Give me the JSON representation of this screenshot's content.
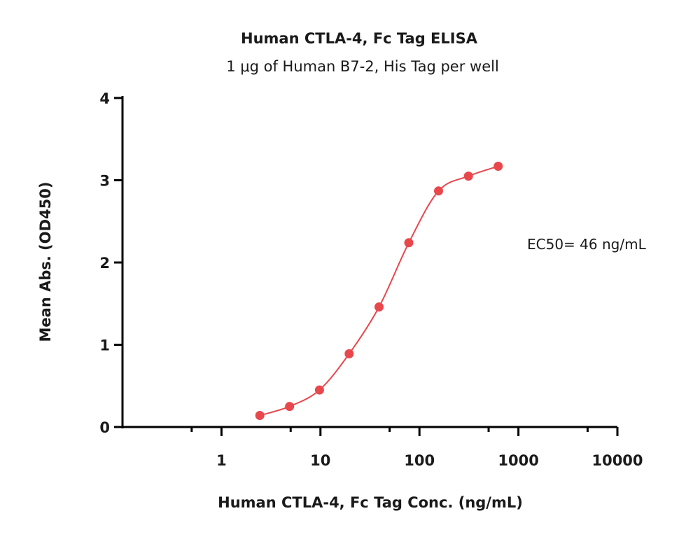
{
  "chart_data": {
    "type": "scatter",
    "title": "Human CTLA-4, Fc Tag ELISA",
    "subtitle": "1 μg of Human B7-2, His Tag per well",
    "xlabel": "Human CTLA-4, Fc Tag Conc. (ng/mL)",
    "ylabel": "Mean Abs. (OD450)",
    "x_scale": "log",
    "xlim": [
      0.1,
      10000
    ],
    "ylim": [
      0,
      4
    ],
    "x_ticks": [
      1,
      10,
      100,
      1000,
      10000
    ],
    "x_tick_labels": [
      "1",
      "10",
      "100",
      "1000",
      "10000"
    ],
    "y_ticks": [
      0,
      1,
      2,
      3,
      4
    ],
    "y_tick_labels": [
      "0",
      "1",
      "2",
      "3",
      "4"
    ],
    "grid": false,
    "annotation": "EC50= 46 ng/mL",
    "colors": {
      "series": "#e8474c",
      "axis": "#000000"
    },
    "series": [
      {
        "x": [
          2.44,
          4.88,
          9.77,
          19.5,
          39.1,
          78.1,
          156,
          312.5,
          625
        ],
        "y": [
          0.14,
          0.25,
          0.45,
          0.89,
          1.46,
          2.24,
          2.87,
          3.05,
          3.17
        ]
      }
    ]
  }
}
